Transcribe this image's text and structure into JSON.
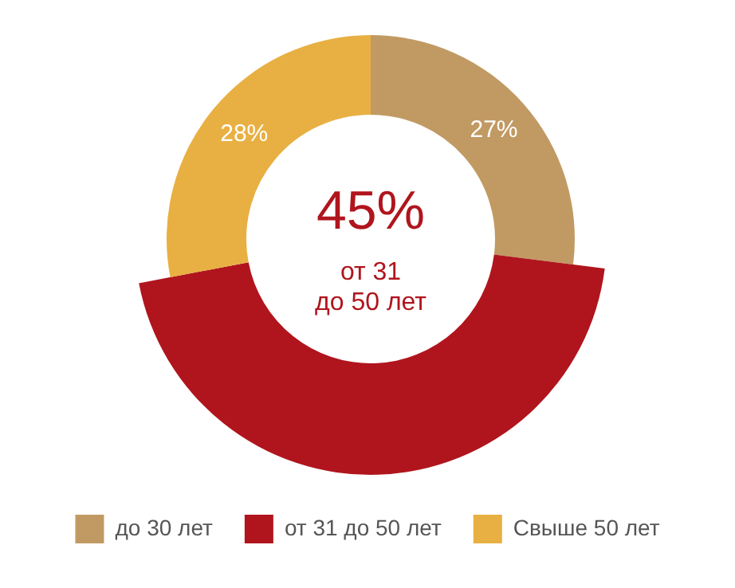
{
  "chart_data": {
    "type": "donut",
    "categories": [
      "до 30 лет",
      "от 31 до 50 лет",
      "Свыше 50 лет"
    ],
    "values": [
      27,
      45,
      28
    ],
    "colors": [
      "#c19a63",
      "#b0151d",
      "#e8b042"
    ],
    "value_labels": [
      "27%",
      null,
      "28%"
    ],
    "annotations": [
      "45%",
      "от 31",
      "до 50 лет"
    ],
    "legend": "bottom"
  }
}
